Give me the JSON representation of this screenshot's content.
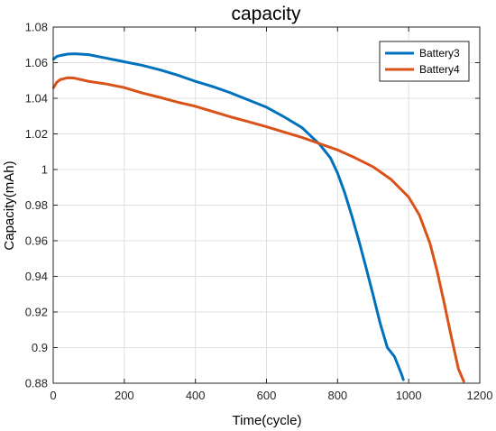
{
  "chart_data": {
    "type": "line",
    "title": "capacity",
    "xlabel": "Time(cycle)",
    "ylabel": "Capacity(mAh)",
    "xlim": [
      0,
      1200
    ],
    "ylim": [
      0.88,
      1.08
    ],
    "xticks": [
      0,
      200,
      400,
      600,
      800,
      1000,
      1200
    ],
    "xtick_labels": [
      "0",
      "200",
      "400",
      "600",
      "800",
      "1000",
      "1200"
    ],
    "yticks": [
      0.88,
      0.9,
      0.92,
      0.94,
      0.96,
      0.98,
      1.0,
      1.02,
      1.04,
      1.06,
      1.08
    ],
    "ytick_labels": [
      "0.88",
      "0.9",
      "0.92",
      "0.94",
      "0.96",
      "0.98",
      "1",
      "1.02",
      "1.04",
      "1.06",
      "1.08"
    ],
    "grid": true,
    "legend_position": "top-right",
    "series": [
      {
        "name": "Battery3",
        "color": "#0072BD",
        "x": [
          1,
          10,
          20,
          40,
          60,
          100,
          150,
          200,
          250,
          300,
          350,
          400,
          450,
          500,
          550,
          600,
          650,
          700,
          750,
          780,
          800,
          820,
          840,
          860,
          880,
          900,
          920,
          940,
          960,
          980,
          985
        ],
        "y": [
          1.062,
          1.0635,
          1.064,
          1.0648,
          1.065,
          1.0645,
          1.0625,
          1.0605,
          1.0585,
          1.056,
          1.053,
          1.0495,
          1.0465,
          1.043,
          1.039,
          1.035,
          1.0295,
          1.0235,
          1.014,
          1.0065,
          0.998,
          0.987,
          0.974,
          0.96,
          0.945,
          0.9295,
          0.9135,
          0.9,
          0.895,
          0.885,
          0.882
        ]
      },
      {
        "name": "Battery4",
        "color": "#D95319",
        "x": [
          1,
          10,
          20,
          40,
          60,
          100,
          150,
          200,
          250,
          300,
          350,
          400,
          450,
          500,
          550,
          600,
          650,
          700,
          750,
          800,
          850,
          900,
          950,
          1000,
          1030,
          1060,
          1080,
          1100,
          1120,
          1140,
          1155
        ],
        "y": [
          1.046,
          1.049,
          1.0505,
          1.0515,
          1.0513,
          1.0495,
          1.048,
          1.046,
          1.043,
          1.0405,
          1.0378,
          1.0355,
          1.0325,
          1.0295,
          1.0268,
          1.024,
          1.021,
          1.018,
          1.0145,
          1.011,
          1.0065,
          1.0015,
          0.9945,
          0.9845,
          0.9745,
          0.9585,
          0.943,
          0.925,
          0.906,
          0.888,
          0.881
        ]
      }
    ]
  }
}
